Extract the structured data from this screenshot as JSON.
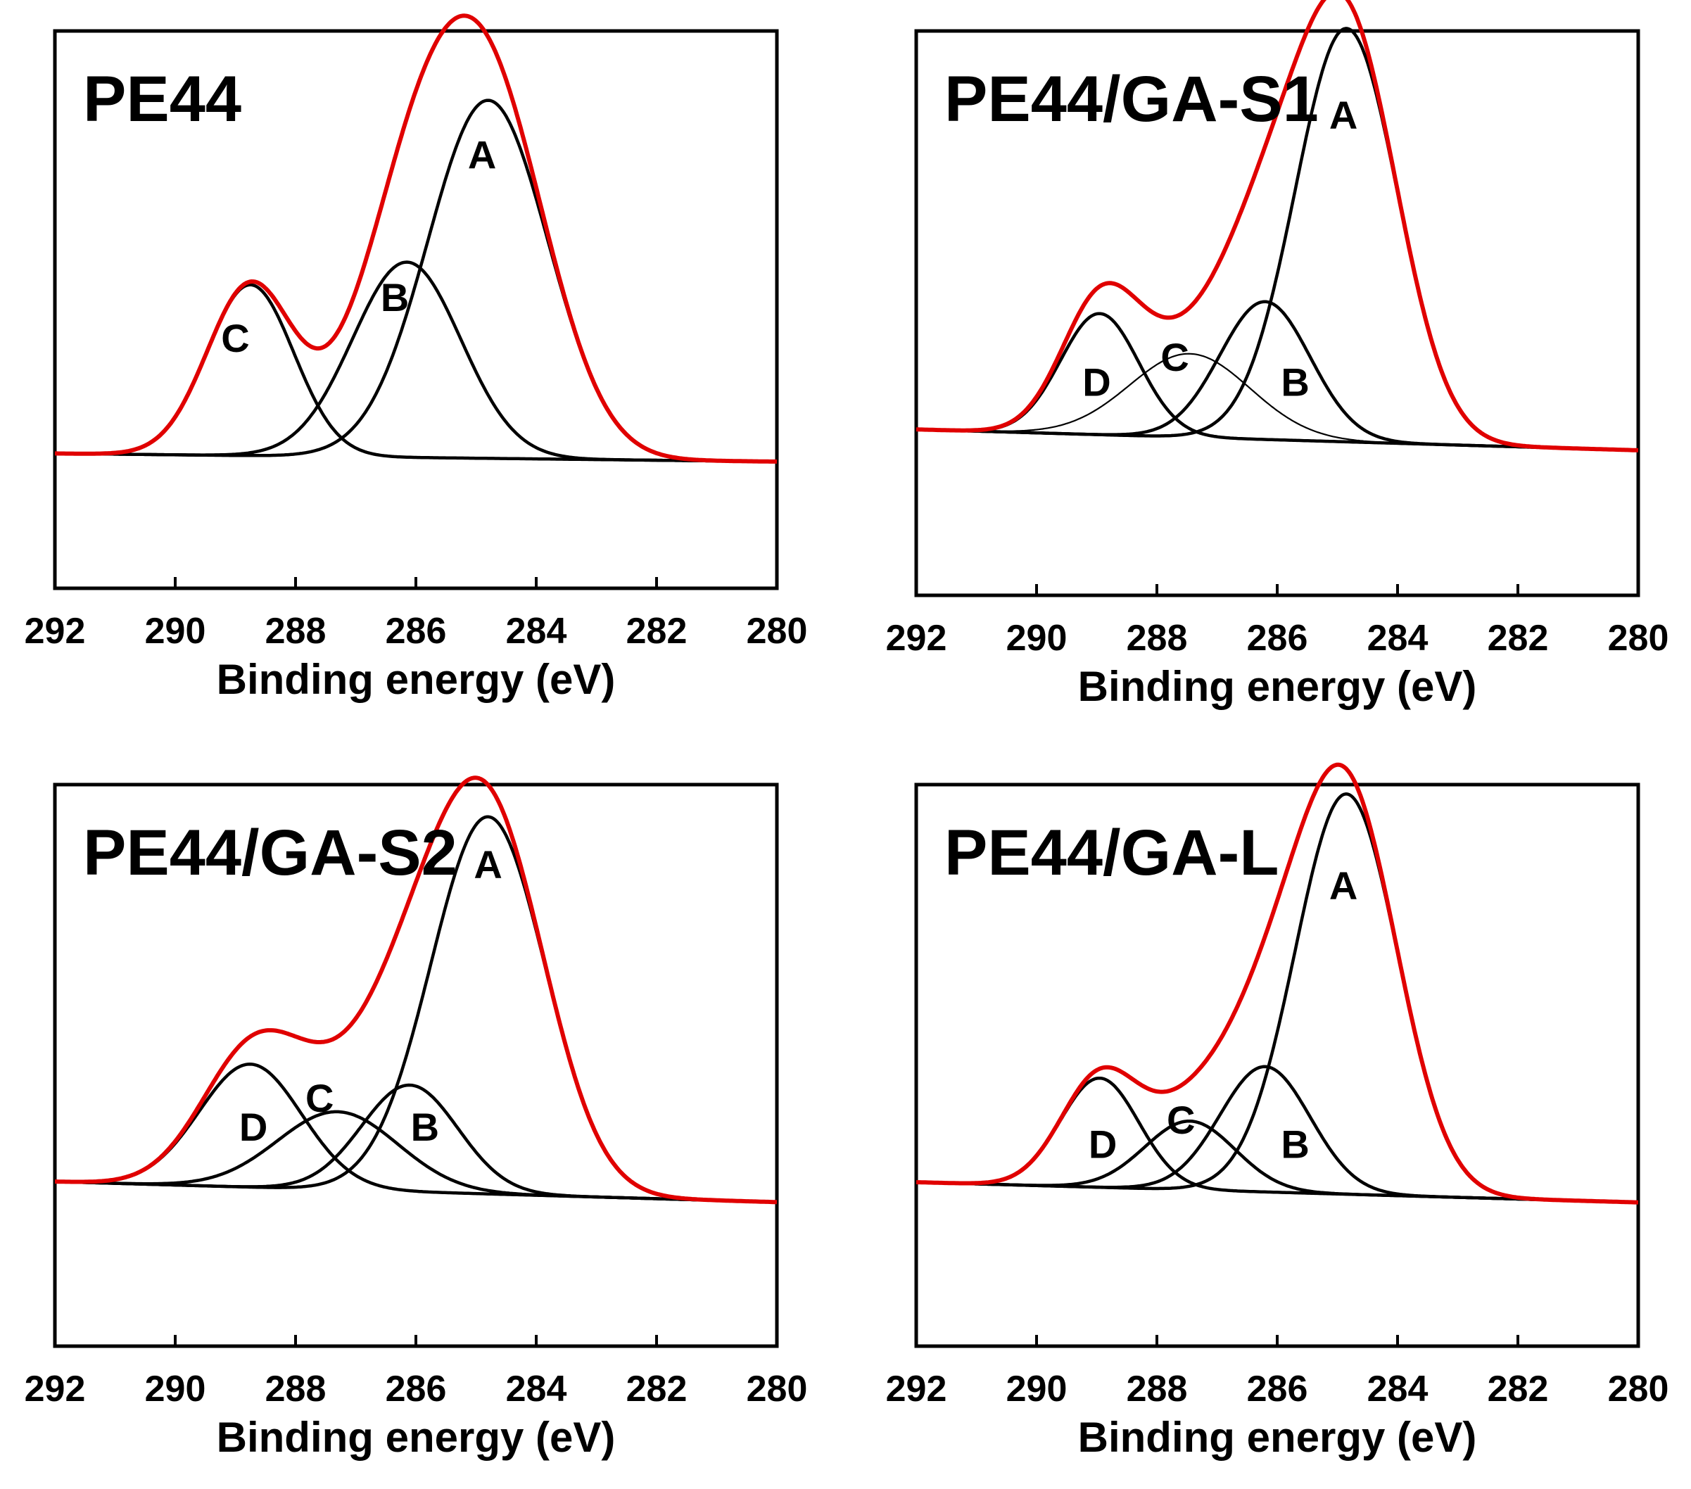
{
  "colors": {
    "envelope": "#e00000",
    "component": "#000000",
    "frame": "#000000"
  },
  "chart_data": [
    {
      "type": "line",
      "title": "PE44",
      "xlabel": "Binding energy (eV)",
      "ylabel": "",
      "xlim": [
        292,
        280
      ],
      "x_reversed": true,
      "x_ticks": [
        "292",
        "290",
        "288",
        "286",
        "284",
        "282",
        "280"
      ],
      "baseline": {
        "x": [
          292,
          280
        ],
        "y": [
          0.03,
          0.01
        ]
      },
      "series": [
        {
          "name": "A",
          "center": 284.8,
          "height": 0.88,
          "width": 1.0
        },
        {
          "name": "B",
          "center": 286.15,
          "height": 0.48,
          "width": 0.9
        },
        {
          "name": "C",
          "center": 288.75,
          "height": 0.42,
          "width": 0.72
        },
        {
          "name": "envelope",
          "role": "envelope"
        }
      ],
      "peak_labels": [
        {
          "text": "A",
          "x": 284.9,
          "y": 0.73
        },
        {
          "text": "B",
          "x": 286.35,
          "y": 0.38
        },
        {
          "text": "C",
          "x": 289.0,
          "y": 0.28
        }
      ]
    },
    {
      "type": "line",
      "title": "PE44/GA-S1",
      "xlabel": "Binding energy (eV)",
      "ylabel": "",
      "xlim": [
        292,
        280
      ],
      "x_reversed": true,
      "x_ticks": [
        "292",
        "290",
        "288",
        "286",
        "284",
        "282",
        "280"
      ],
      "baseline": {
        "x": [
          292,
          280
        ],
        "y": [
          0.1,
          0.05
        ]
      },
      "series": [
        {
          "name": "A",
          "center": 284.85,
          "height": 0.99,
          "width": 0.85
        },
        {
          "name": "B",
          "center": 286.2,
          "height": 0.33,
          "width": 0.75
        },
        {
          "name": "C",
          "center": 287.45,
          "height": 0.2,
          "width": 1.0,
          "style": "thin"
        },
        {
          "name": "D",
          "center": 288.95,
          "height": 0.29,
          "width": 0.65
        },
        {
          "name": "envelope",
          "role": "envelope"
        }
      ],
      "peak_labels": [
        {
          "text": "A",
          "x": 284.9,
          "y": 0.82
        },
        {
          "text": "B",
          "x": 285.7,
          "y": 0.18
        },
        {
          "text": "C",
          "x": 287.7,
          "y": 0.24
        },
        {
          "text": "D",
          "x": 289.0,
          "y": 0.18
        }
      ]
    },
    {
      "type": "line",
      "title": "PE44/GA-S2",
      "xlabel": "Binding energy (eV)",
      "ylabel": "",
      "xlim": [
        292,
        280
      ],
      "x_reversed": true,
      "x_ticks": [
        "292",
        "290",
        "288",
        "286",
        "284",
        "282",
        "280"
      ],
      "baseline": {
        "x": [
          292,
          280
        ],
        "y": [
          0.1,
          0.05
        ]
      },
      "series": [
        {
          "name": "A",
          "center": 284.8,
          "height": 0.92,
          "width": 0.95
        },
        {
          "name": "B",
          "center": 286.1,
          "height": 0.26,
          "width": 0.8
        },
        {
          "name": "C",
          "center": 287.3,
          "height": 0.19,
          "width": 1.0
        },
        {
          "name": "D",
          "center": 288.75,
          "height": 0.3,
          "width": 0.85
        },
        {
          "name": "envelope",
          "role": "envelope"
        }
      ],
      "peak_labels": [
        {
          "text": "A",
          "x": 284.8,
          "y": 0.84
        },
        {
          "text": "B",
          "x": 285.85,
          "y": 0.2
        },
        {
          "text": "C",
          "x": 287.6,
          "y": 0.27
        },
        {
          "text": "D",
          "x": 288.7,
          "y": 0.2
        }
      ]
    },
    {
      "type": "line",
      "title": "PE44/GA-L",
      "xlabel": "Binding energy (eV)",
      "ylabel": "",
      "xlim": [
        292,
        280
      ],
      "x_reversed": true,
      "x_ticks": [
        "292",
        "290",
        "288",
        "286",
        "284",
        "282",
        "280"
      ],
      "baseline": {
        "x": [
          292,
          280
        ],
        "y": [
          0.1,
          0.05
        ]
      },
      "series": [
        {
          "name": "A",
          "center": 284.85,
          "height": 0.99,
          "width": 0.85
        },
        {
          "name": "B",
          "center": 286.2,
          "height": 0.31,
          "width": 0.75
        },
        {
          "name": "C",
          "center": 287.45,
          "height": 0.17,
          "width": 0.75
        },
        {
          "name": "D",
          "center": 288.95,
          "height": 0.27,
          "width": 0.65
        },
        {
          "name": "envelope",
          "role": "envelope"
        }
      ],
      "peak_labels": [
        {
          "text": "A",
          "x": 284.9,
          "y": 0.8
        },
        {
          "text": "B",
          "x": 285.7,
          "y": 0.16
        },
        {
          "text": "C",
          "x": 287.6,
          "y": 0.22
        },
        {
          "text": "D",
          "x": 288.9,
          "y": 0.16
        }
      ]
    }
  ]
}
